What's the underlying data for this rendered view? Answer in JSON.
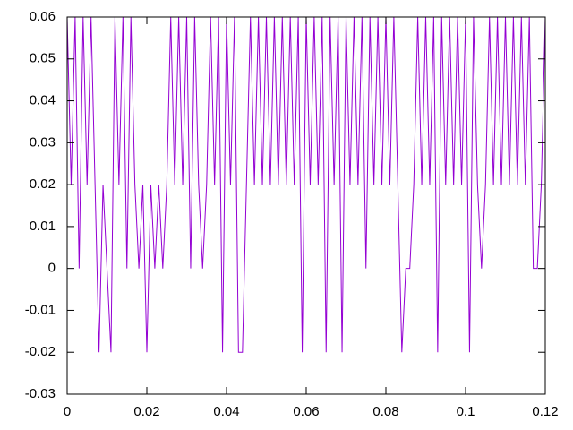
{
  "chart_data": {
    "type": "line",
    "color": "#9400d3",
    "x": [
      0,
      0.001,
      0.002,
      0.003,
      0.004,
      0.005,
      0.006,
      0.007,
      0.008,
      0.009,
      0.01,
      0.011,
      0.012,
      0.013,
      0.014,
      0.015,
      0.016,
      0.017,
      0.018,
      0.019,
      0.02,
      0.021,
      0.022,
      0.023,
      0.024,
      0.025,
      0.026,
      0.027,
      0.028,
      0.029,
      0.03,
      0.031,
      0.032,
      0.033,
      0.034,
      0.035,
      0.036,
      0.037,
      0.038,
      0.039,
      0.04,
      0.041,
      0.042,
      0.043,
      0.044,
      0.045,
      0.046,
      0.047,
      0.048,
      0.049,
      0.05,
      0.051,
      0.052,
      0.053,
      0.054,
      0.055,
      0.056,
      0.057,
      0.058,
      0.059,
      0.06,
      0.061,
      0.062,
      0.063,
      0.064,
      0.065,
      0.066,
      0.067,
      0.068,
      0.069,
      0.07,
      0.071,
      0.072,
      0.073,
      0.074,
      0.075,
      0.076,
      0.077,
      0.078,
      0.079,
      0.08,
      0.081,
      0.082,
      0.083,
      0.084,
      0.085,
      0.086,
      0.087,
      0.088,
      0.089,
      0.09,
      0.091,
      0.092,
      0.093,
      0.094,
      0.095,
      0.096,
      0.097,
      0.098,
      0.099,
      0.1,
      0.101,
      0.102,
      0.103,
      0.104,
      0.105,
      0.106,
      0.107,
      0.108,
      0.109,
      0.11,
      0.111,
      0.112,
      0.113,
      0.114,
      0.115,
      0.116,
      0.117,
      0.118,
      0.119,
      0.12
    ],
    "values": [
      0.06,
      0.02,
      0.06,
      0,
      0.06,
      0.02,
      0.06,
      0.02,
      -0.02,
      0.02,
      0,
      -0.02,
      0.06,
      0.02,
      0.06,
      0,
      0.06,
      0.02,
      0,
      0.02,
      -0.02,
      0.02,
      0,
      0.02,
      0,
      0.02,
      0.06,
      0.02,
      0.06,
      0.02,
      0.06,
      0,
      0.06,
      0.02,
      0,
      0.02,
      0.06,
      0.02,
      0.06,
      -0.02,
      0.06,
      0.02,
      0.06,
      -0.02,
      -0.02,
      0.02,
      0.06,
      0.02,
      0.06,
      0.02,
      0.06,
      0.02,
      0.06,
      0.02,
      0.06,
      0.02,
      0.06,
      0.02,
      0.06,
      -0.02,
      0.06,
      0.02,
      0.06,
      0.02,
      0.06,
      -0.02,
      0.06,
      0.02,
      0.06,
      -0.02,
      0.06,
      0.02,
      0.06,
      0.02,
      0.06,
      0,
      0.06,
      0.02,
      0.06,
      0.02,
      0.06,
      0.02,
      0.06,
      0.02,
      -0.02,
      0,
      0,
      0.02,
      0.06,
      0.02,
      0.06,
      0.02,
      0.06,
      -0.02,
      0.06,
      0.02,
      0.06,
      0.02,
      0.06,
      0.02,
      0.06,
      -0.02,
      0.06,
      0.02,
      0,
      0.02,
      0.06,
      0.02,
      0.06,
      0.02,
      0.06,
      0.02,
      0.06,
      0.02,
      0.06,
      0.02,
      0.06,
      0,
      0,
      0.02,
      0.06
    ],
    "xlim": [
      0,
      0.12
    ],
    "xticks": [
      0,
      0.02,
      0.04,
      0.06,
      0.08,
      0.1,
      0.12
    ],
    "ylim": [
      -0.03,
      0.06
    ],
    "yticks": [
      -0.03,
      -0.02,
      -0.01,
      0,
      0.01,
      0.02,
      0.03,
      0.04,
      0.05,
      0.06
    ]
  }
}
